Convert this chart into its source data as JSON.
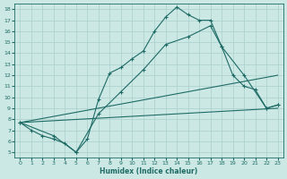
{
  "xlabel": "Humidex (Indice chaleur)",
  "xlim": [
    -0.5,
    23.5
  ],
  "ylim": [
    4.5,
    18.5
  ],
  "xticks": [
    0,
    1,
    2,
    3,
    4,
    5,
    6,
    7,
    8,
    9,
    10,
    11,
    12,
    13,
    14,
    15,
    16,
    17,
    18,
    19,
    20,
    21,
    22,
    23
  ],
  "yticks": [
    5,
    6,
    7,
    8,
    9,
    10,
    11,
    12,
    13,
    14,
    15,
    16,
    17,
    18
  ],
  "bg_color": "#cce8e5",
  "grid_color": "#aacfcc",
  "line_color": "#1e6b65",
  "line1_x": [
    0,
    1,
    2,
    3,
    4,
    5,
    6,
    7,
    8,
    9,
    10,
    11,
    12,
    13,
    14,
    15,
    16,
    17,
    18,
    19,
    20,
    21,
    22,
    23
  ],
  "line1_y": [
    7.7,
    7.0,
    6.5,
    6.2,
    5.8,
    5.0,
    6.2,
    9.8,
    12.2,
    12.7,
    13.5,
    14.2,
    16.0,
    17.3,
    18.2,
    17.5,
    17.0,
    17.0,
    14.6,
    12.0,
    11.0,
    10.7,
    9.0,
    9.3
  ],
  "line2_x": [
    0,
    3,
    5,
    7,
    9,
    11,
    13,
    15,
    17,
    18,
    20,
    22,
    23
  ],
  "line2_y": [
    7.7,
    6.5,
    5.0,
    8.5,
    10.5,
    12.5,
    14.8,
    15.5,
    16.5,
    14.6,
    12.0,
    9.0,
    9.3
  ],
  "line3_x": [
    0,
    23
  ],
  "line3_y": [
    7.7,
    12.0
  ],
  "line4_x": [
    0,
    23
  ],
  "line4_y": [
    7.7,
    9.0
  ]
}
